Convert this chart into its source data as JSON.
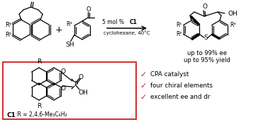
{
  "bg_color": "#ffffff",
  "box_color": "#d63333",
  "check_color": "#cc2222",
  "text_color": "#000000",
  "arrow_color": "#000000",
  "cond1a": "5 mol % ",
  "cond1b": "C1",
  "cond2": "cyclohexane, 40°C",
  "result1": "up to 99% ee",
  "result2": "up to 95% yield",
  "check_items": [
    "CPA catalyst",
    "four chiral elements",
    "excellent ee and dr"
  ],
  "catalyst_bold": "C1",
  "catalyst_rest": ":R = 2,4,6-Me",
  "catalyst_sub": "3",
  "catalyst_rest2": "C",
  "catalyst_sub2": "6",
  "catalyst_rest3": "H",
  "catalyst_sub3": "2",
  "figsize": [
    3.78,
    1.73
  ],
  "dpi": 100
}
